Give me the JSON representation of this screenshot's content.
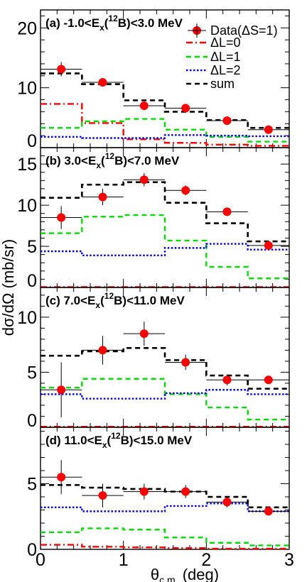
{
  "chart_data": [
    {
      "type": "histogram-with-points",
      "title": "(a) -1.0<E_x(12B)<3.0 MeV",
      "title_parts": {
        "pre": "(a) -1.0<E",
        "sub": "x",
        "mid": "(",
        "sup": "12",
        "post": "B)<3.0 MeV"
      },
      "xlim": [
        0,
        3
      ],
      "ylim": [
        0,
        23
      ],
      "yticks": [
        "0",
        "10",
        "20"
      ],
      "bin_edges": [
        0,
        0.5,
        1,
        1.5,
        2,
        2.5,
        3
      ],
      "data_points": {
        "name": "Data(ΔS=1)",
        "x": [
          0.25,
          0.75,
          1.25,
          1.75,
          2.25,
          2.75
        ],
        "y": [
          13.1,
          10.9,
          7.0,
          6.6,
          4.5,
          3.0
        ],
        "yerr": [
          1.2,
          0.7,
          0.4,
          0.4,
          0.3,
          0.3
        ]
      },
      "series": [
        {
          "name": "ΔL=0",
          "color": "#ff0000",
          "dash": "dashdot",
          "values": [
            7.3,
            4.1,
            1.4,
            0.8,
            0.5,
            0.3
          ]
        },
        {
          "name": "ΔL=1",
          "color": "#00dd00",
          "dash": "dash",
          "values": [
            3.3,
            4.4,
            4.8,
            3.0,
            1.8,
            1.0
          ]
        },
        {
          "name": "ΔL=2",
          "color": "#0000ee",
          "dash": "dot",
          "values": [
            1.8,
            1.6,
            1.6,
            2.1,
            2.0,
            1.9
          ]
        },
        {
          "name": "sum",
          "color": "#000000",
          "dash": "dash",
          "values": [
            12.4,
            10.6,
            7.9,
            6.0,
            4.6,
            3.3
          ]
        }
      ],
      "legend": {
        "position": "top-right",
        "entries": [
          "Data(ΔS=1)",
          "ΔL=0",
          "ΔL=1",
          "ΔL=2",
          "sum"
        ]
      }
    },
    {
      "type": "histogram-with-points",
      "title": "(b) 3.0<E_x(12B)<7.0 MeV",
      "title_parts": {
        "pre": "(b) 3.0<E",
        "sub": "x",
        "mid": "(",
        "sup": "12",
        "post": "B)<7.0 MeV"
      },
      "xlim": [
        0,
        3
      ],
      "ylim": [
        0,
        17
      ],
      "yticks": [
        "0",
        "5",
        "10",
        "15"
      ],
      "bin_edges": [
        0,
        0.5,
        1,
        1.5,
        2,
        2.5,
        3
      ],
      "data_points": {
        "name": "Data(ΔS=1)",
        "x": [
          0.25,
          0.75,
          1.25,
          1.75,
          2.25,
          2.75
        ],
        "y": [
          8.5,
          11.0,
          13.1,
          11.8,
          9.2,
          5.1
        ],
        "yerr": [
          1.4,
          1.0,
          0.8,
          0.6,
          0.4,
          0.4
        ]
      },
      "series": [
        {
          "name": "ΔL=0",
          "color": "#ff0000",
          "dash": "dashdot",
          "values": [
            0.05,
            0.05,
            0.05,
            0.05,
            0.05,
            0.05
          ]
        },
        {
          "name": "ΔL=1",
          "color": "#00dd00",
          "dash": "dash",
          "values": [
            6.6,
            8.6,
            8.8,
            5.7,
            2.5,
            1.1
          ]
        },
        {
          "name": "ΔL=2",
          "color": "#0000ee",
          "dash": "dot",
          "values": [
            4.4,
            3.9,
            3.9,
            4.8,
            5.3,
            4.6
          ]
        },
        {
          "name": "sum",
          "color": "#000000",
          "dash": "dash",
          "values": [
            10.9,
            12.5,
            12.8,
            10.3,
            7.8,
            5.6
          ]
        }
      ]
    },
    {
      "type": "histogram-with-points",
      "title": "(c) 7.0<E_x(12B)<11.0 MeV",
      "title_parts": {
        "pre": "(c) 7.0<E",
        "sub": "x",
        "mid": "(",
        "sup": "12",
        "post": "B)<11.0 MeV"
      },
      "xlim": [
        0,
        3
      ],
      "ylim": [
        0,
        12.7
      ],
      "yticks": [
        "0",
        "5",
        "10"
      ],
      "bin_edges": [
        0,
        0.5,
        1,
        1.5,
        2,
        2.5,
        3
      ],
      "data_points": {
        "name": "Data(ΔS=1)",
        "x": [
          0.25,
          0.75,
          1.25,
          1.75,
          2.25,
          2.75
        ],
        "y": [
          3.4,
          7.0,
          8.5,
          5.9,
          4.3,
          4.3
        ],
        "yerr": [
          2.5,
          1.3,
          1.1,
          0.7,
          0.5,
          0.3
        ]
      },
      "series": [
        {
          "name": "ΔL=0",
          "color": "#ff0000",
          "dash": "dashdot",
          "values": [
            0.05,
            0.05,
            0.05,
            0.05,
            0.05,
            0.05
          ]
        },
        {
          "name": "ΔL=1",
          "color": "#00dd00",
          "dash": "dash",
          "values": [
            3.6,
            4.4,
            4.4,
            3.0,
            1.8,
            0.7
          ]
        },
        {
          "name": "ΔL=2",
          "color": "#0000ee",
          "dash": "dot",
          "values": [
            3.0,
            2.6,
            2.6,
            3.1,
            3.4,
            3.0
          ]
        },
        {
          "name": "sum",
          "color": "#000000",
          "dash": "dash",
          "values": [
            6.5,
            6.9,
            7.2,
            6.1,
            4.7,
            3.5
          ]
        }
      ]
    },
    {
      "type": "histogram-with-points",
      "title": "(d) 11.0<E_x(12B)<15.0 MeV",
      "title_parts": {
        "pre": "(d) 11.0<E",
        "sub": "x",
        "mid": "(",
        "sup": "12",
        "post": "B)<15.0 MeV"
      },
      "xlim": [
        0,
        3
      ],
      "ylim": [
        0,
        9.3
      ],
      "yticks": [
        "0",
        "5"
      ],
      "xticks": [
        "0",
        "1",
        "2",
        "3"
      ],
      "xlabel": "θc.m. (deg)",
      "bin_edges": [
        0,
        0.5,
        1,
        1.5,
        2,
        2.5,
        3
      ],
      "data_points": {
        "name": "Data(ΔS=1)",
        "x": [
          0.25,
          0.75,
          1.25,
          1.75,
          2.25,
          2.75
        ],
        "y": [
          5.5,
          4.1,
          4.4,
          4.4,
          3.6,
          2.9
        ],
        "yerr": [
          1.3,
          0.9,
          0.6,
          0.5,
          0.4,
          0.3
        ]
      },
      "series": [
        {
          "name": "ΔL=0",
          "color": "#ff0000",
          "dash": "dashdot",
          "values": [
            0.35,
            0.2,
            0.15,
            0.1,
            0.05,
            0.05
          ]
        },
        {
          "name": "ΔL=1",
          "color": "#00dd00",
          "dash": "dash",
          "values": [
            1.3,
            1.6,
            1.5,
            0.9,
            0.5,
            0.3
          ]
        },
        {
          "name": "ΔL=2",
          "color": "#0000ee",
          "dash": "dot",
          "values": [
            3.2,
            2.9,
            2.9,
            3.3,
            3.5,
            2.9
          ]
        },
        {
          "name": "sum",
          "color": "#000000",
          "dash": "dash",
          "values": [
            4.9,
            4.7,
            4.6,
            4.4,
            4.0,
            3.2
          ]
        }
      ]
    }
  ],
  "ylabel": "dσ/dΩ (mb/sr)",
  "xlabel_parts": {
    "main": "θ",
    "sub": "c.m.",
    "post": " (deg)"
  }
}
